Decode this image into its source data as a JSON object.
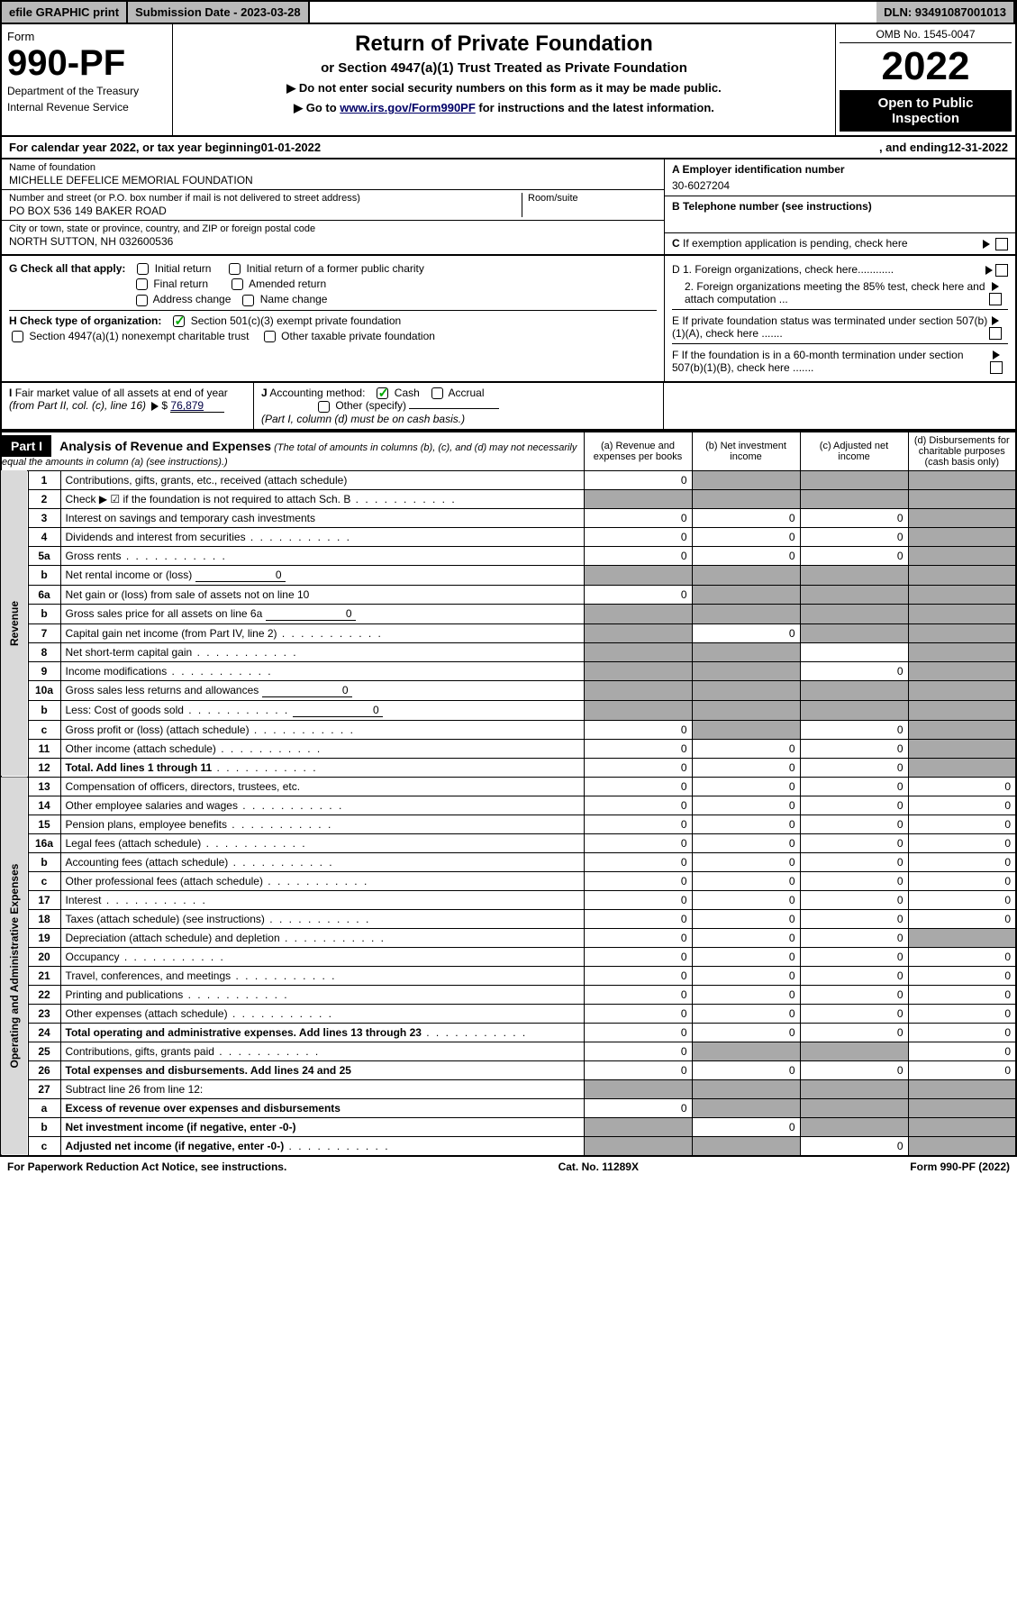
{
  "topbar": {
    "efile": "efile GRAPHIC print",
    "subdate_label": "Submission Date - 2023-03-28",
    "dln": "DLN: 93491087001013"
  },
  "header": {
    "form_label": "Form",
    "form_number": "990-PF",
    "dept1": "Department of the Treasury",
    "dept2": "Internal Revenue Service",
    "title": "Return of Private Foundation",
    "subtitle": "or Section 4947(a)(1) Trust Treated as Private Foundation",
    "note1": "▶ Do not enter social security numbers on this form as it may be made public.",
    "note2_pre": "▶ Go to ",
    "note2_link": "www.irs.gov/Form990PF",
    "note2_post": " for instructions and the latest information.",
    "omb": "OMB No. 1545-0047",
    "year": "2022",
    "inspect": "Open to Public Inspection"
  },
  "calendar": {
    "pre": "For calendar year 2022, or tax year beginning ",
    "begin": "01-01-2022",
    "mid": " , and ending ",
    "end": "12-31-2022"
  },
  "id": {
    "name_label": "Name of foundation",
    "name": "MICHELLE DEFELICE MEMORIAL FOUNDATION",
    "addr_label": "Number and street (or P.O. box number if mail is not delivered to street address)",
    "addr": "PO BOX 536 149 BAKER ROAD",
    "room_label": "Room/suite",
    "city_label": "City or town, state or province, country, and ZIP or foreign postal code",
    "city": "NORTH SUTTON, NH  032600536",
    "ein_label": "A Employer identification number",
    "ein": "30-6027204",
    "phone_label": "B Telephone number (see instructions)",
    "c_label": "C If exemption application is pending, check here"
  },
  "checks": {
    "g_label": "G Check all that apply:",
    "initial": "Initial return",
    "initial_former": "Initial return of a former public charity",
    "final": "Final return",
    "amended": "Amended return",
    "address": "Address change",
    "name": "Name change",
    "h_label": "H Check type of organization:",
    "h_501c3": "Section 501(c)(3) exempt private foundation",
    "h_4947": "Section 4947(a)(1) nonexempt charitable trust",
    "h_other": "Other taxable private foundation",
    "d1": "D 1. Foreign organizations, check here............",
    "d2": "2. Foreign organizations meeting the 85% test, check here and attach computation ...",
    "e": "E  If private foundation status was terminated under section 507(b)(1)(A), check here .......",
    "f": "F  If the foundation is in a 60-month termination under section 507(b)(1)(B), check here ......."
  },
  "bottom_opts": {
    "i_label": "I Fair market value of all assets at end of year (from Part II, col. (c), line 16)",
    "i_val": "76,879",
    "j_label": "J Accounting method:",
    "j_cash": "Cash",
    "j_accrual": "Accrual",
    "j_other": "Other (specify)",
    "j_note": "(Part I, column (d) must be on cash basis.)"
  },
  "part1": {
    "label": "Part I",
    "title": "Analysis of Revenue and Expenses",
    "title_note": "(The total of amounts in columns (b), (c), and (d) may not necessarily equal the amounts in column (a) (see instructions).)",
    "col_a": "(a) Revenue and expenses per books",
    "col_b": "(b) Net investment income",
    "col_c": "(c) Adjusted net income",
    "col_d": "(d) Disbursements for charitable purposes (cash basis only)"
  },
  "sides": {
    "revenue": "Revenue",
    "expenses": "Operating and Administrative Expenses"
  },
  "rows": [
    {
      "n": "1",
      "label": "Contributions, gifts, grants, etc., received (attach schedule)",
      "a": "0",
      "b": "",
      "c": "",
      "d": "",
      "bs": true,
      "cs": true,
      "ds": true
    },
    {
      "n": "2",
      "label": "Check ▶ ☑ if the foundation is not required to attach Sch. B",
      "dots": true,
      "a": "",
      "b": "",
      "c": "",
      "d": "",
      "as": true,
      "bs": true,
      "cs": true,
      "ds": true
    },
    {
      "n": "3",
      "label": "Interest on savings and temporary cash investments",
      "a": "0",
      "b": "0",
      "c": "0",
      "d": "",
      "ds": true
    },
    {
      "n": "4",
      "label": "Dividends and interest from securities",
      "dots": true,
      "a": "0",
      "b": "0",
      "c": "0",
      "d": "",
      "ds": true
    },
    {
      "n": "5a",
      "label": "Gross rents",
      "dots": true,
      "a": "0",
      "b": "0",
      "c": "0",
      "d": "",
      "ds": true
    },
    {
      "n": "b",
      "label": "Net rental income or (loss)",
      "inline": "0",
      "a": "",
      "b": "",
      "c": "",
      "d": "",
      "as": true,
      "bs": true,
      "cs": true,
      "ds": true
    },
    {
      "n": "6a",
      "label": "Net gain or (loss) from sale of assets not on line 10",
      "a": "0",
      "b": "",
      "c": "",
      "d": "",
      "bs": true,
      "cs": true,
      "ds": true
    },
    {
      "n": "b",
      "label": "Gross sales price for all assets on line 6a",
      "inline": "0",
      "a": "",
      "b": "",
      "c": "",
      "d": "",
      "as": true,
      "bs": true,
      "cs": true,
      "ds": true
    },
    {
      "n": "7",
      "label": "Capital gain net income (from Part IV, line 2)",
      "dots": true,
      "a": "",
      "b": "0",
      "c": "",
      "d": "",
      "as": true,
      "cs": true,
      "ds": true
    },
    {
      "n": "8",
      "label": "Net short-term capital gain",
      "dots": true,
      "a": "",
      "b": "",
      "c": "",
      "d": "",
      "as": true,
      "bs": true,
      "ds": true
    },
    {
      "n": "9",
      "label": "Income modifications",
      "dots": true,
      "a": "",
      "b": "",
      "c": "0",
      "d": "",
      "as": true,
      "bs": true,
      "ds": true
    },
    {
      "n": "10a",
      "label": "Gross sales less returns and allowances",
      "inline": "0",
      "a": "",
      "b": "",
      "c": "",
      "d": "",
      "as": true,
      "bs": true,
      "cs": true,
      "ds": true
    },
    {
      "n": "b",
      "label": "Less: Cost of goods sold",
      "dots": true,
      "inline": "0",
      "a": "",
      "b": "",
      "c": "",
      "d": "",
      "as": true,
      "bs": true,
      "cs": true,
      "ds": true
    },
    {
      "n": "c",
      "label": "Gross profit or (loss) (attach schedule)",
      "dots": true,
      "a": "0",
      "b": "",
      "c": "0",
      "d": "",
      "bs": true,
      "ds": true
    },
    {
      "n": "11",
      "label": "Other income (attach schedule)",
      "dots": true,
      "a": "0",
      "b": "0",
      "c": "0",
      "d": "",
      "ds": true
    },
    {
      "n": "12",
      "label": "Total. Add lines 1 through 11",
      "dots": true,
      "bold": true,
      "a": "0",
      "b": "0",
      "c": "0",
      "d": "",
      "ds": true
    },
    {
      "n": "13",
      "label": "Compensation of officers, directors, trustees, etc.",
      "a": "0",
      "b": "0",
      "c": "0",
      "d": "0"
    },
    {
      "n": "14",
      "label": "Other employee salaries and wages",
      "dots": true,
      "a": "0",
      "b": "0",
      "c": "0",
      "d": "0"
    },
    {
      "n": "15",
      "label": "Pension plans, employee benefits",
      "dots": true,
      "a": "0",
      "b": "0",
      "c": "0",
      "d": "0"
    },
    {
      "n": "16a",
      "label": "Legal fees (attach schedule)",
      "dots": true,
      "a": "0",
      "b": "0",
      "c": "0",
      "d": "0"
    },
    {
      "n": "b",
      "label": "Accounting fees (attach schedule)",
      "dots": true,
      "a": "0",
      "b": "0",
      "c": "0",
      "d": "0"
    },
    {
      "n": "c",
      "label": "Other professional fees (attach schedule)",
      "dots": true,
      "a": "0",
      "b": "0",
      "c": "0",
      "d": "0"
    },
    {
      "n": "17",
      "label": "Interest",
      "dots": true,
      "a": "0",
      "b": "0",
      "c": "0",
      "d": "0"
    },
    {
      "n": "18",
      "label": "Taxes (attach schedule) (see instructions)",
      "dots": true,
      "a": "0",
      "b": "0",
      "c": "0",
      "d": "0"
    },
    {
      "n": "19",
      "label": "Depreciation (attach schedule) and depletion",
      "dots": true,
      "a": "0",
      "b": "0",
      "c": "0",
      "d": "",
      "ds": true
    },
    {
      "n": "20",
      "label": "Occupancy",
      "dots": true,
      "a": "0",
      "b": "0",
      "c": "0",
      "d": "0"
    },
    {
      "n": "21",
      "label": "Travel, conferences, and meetings",
      "dots": true,
      "a": "0",
      "b": "0",
      "c": "0",
      "d": "0"
    },
    {
      "n": "22",
      "label": "Printing and publications",
      "dots": true,
      "a": "0",
      "b": "0",
      "c": "0",
      "d": "0"
    },
    {
      "n": "23",
      "label": "Other expenses (attach schedule)",
      "dots": true,
      "a": "0",
      "b": "0",
      "c": "0",
      "d": "0"
    },
    {
      "n": "24",
      "label": "Total operating and administrative expenses. Add lines 13 through 23",
      "dots": true,
      "bold": true,
      "a": "0",
      "b": "0",
      "c": "0",
      "d": "0"
    },
    {
      "n": "25",
      "label": "Contributions, gifts, grants paid",
      "dots": true,
      "a": "0",
      "b": "",
      "c": "",
      "d": "0",
      "bs": true,
      "cs": true
    },
    {
      "n": "26",
      "label": "Total expenses and disbursements. Add lines 24 and 25",
      "bold": true,
      "a": "0",
      "b": "0",
      "c": "0",
      "d": "0"
    },
    {
      "n": "27",
      "label": "Subtract line 26 from line 12:",
      "a": "",
      "b": "",
      "c": "",
      "d": "",
      "as": true,
      "bs": true,
      "cs": true,
      "ds": true
    },
    {
      "n": "a",
      "label": "Excess of revenue over expenses and disbursements",
      "bold": true,
      "a": "0",
      "b": "",
      "c": "",
      "d": "",
      "bs": true,
      "cs": true,
      "ds": true
    },
    {
      "n": "b",
      "label": "Net investment income (if negative, enter -0-)",
      "bold": true,
      "a": "",
      "b": "0",
      "c": "",
      "d": "",
      "as": true,
      "cs": true,
      "ds": true
    },
    {
      "n": "c",
      "label": "Adjusted net income (if negative, enter -0-)",
      "dots": true,
      "bold": true,
      "a": "",
      "b": "",
      "c": "0",
      "d": "",
      "as": true,
      "bs": true,
      "ds": true
    }
  ],
  "footer": {
    "paperwork": "For Paperwork Reduction Act Notice, see instructions.",
    "catno": "Cat. No. 11289X",
    "formpage": "Form 990-PF (2022)"
  }
}
